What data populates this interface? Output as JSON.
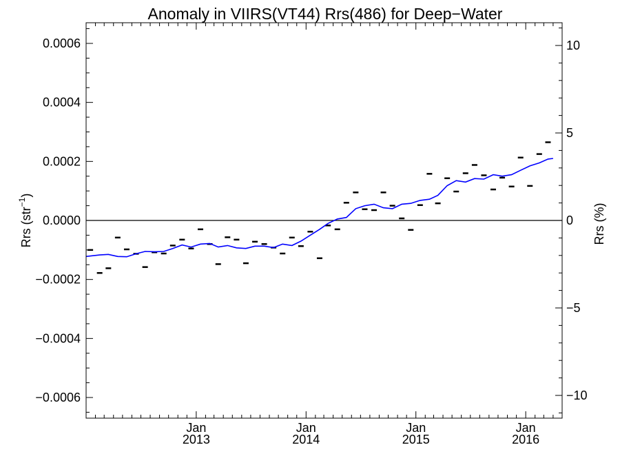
{
  "chart_data": {
    "type": "line",
    "title": "Anomaly in VIIRS(VT44) Rrs(486) for Deep−Water",
    "ylabel_main": "Rrs (str",
    "ylabel_sup": "−1",
    "ylabel_close": ")",
    "y2label": "Rrs (%)",
    "ylim": [
      -0.00067,
      0.00067
    ],
    "y2lim": [
      -11.3,
      11.3
    ],
    "xlim": [
      "2012-01-01",
      "2016-05-01"
    ],
    "grid": false,
    "y_ticks": [
      {
        "value": -0.0006,
        "label": "−0.0006"
      },
      {
        "value": -0.0004,
        "label": "−0.0004"
      },
      {
        "value": -0.0002,
        "label": "−0.0002"
      },
      {
        "value": 0.0,
        "label": "0.0000"
      },
      {
        "value": 0.0002,
        "label": "0.0002"
      },
      {
        "value": 0.0004,
        "label": "0.0004"
      },
      {
        "value": 0.0006,
        "label": "0.0006"
      }
    ],
    "y2_ticks": [
      {
        "value": -10,
        "label": "−10"
      },
      {
        "value": -5,
        "label": "−5"
      },
      {
        "value": 0,
        "label": "0"
      },
      {
        "value": 5,
        "label": "5"
      },
      {
        "value": 10,
        "label": "10"
      }
    ],
    "x_ticks": [
      {
        "date": "2013-01-01",
        "month": "Jan",
        "year": "2013"
      },
      {
        "date": "2014-01-01",
        "month": "Jan",
        "year": "2014"
      },
      {
        "date": "2015-01-01",
        "month": "Jan",
        "year": "2015"
      },
      {
        "date": "2016-01-01",
        "month": "Jan",
        "year": "2016"
      }
    ],
    "reference_line": 0,
    "series": [
      {
        "kind": "markers",
        "marker": "dash",
        "color": "#000000",
        "points": [
          {
            "x": "2012-01-15",
            "y": -0.0001
          },
          {
            "x": "2012-02-15",
            "y": -0.000178
          },
          {
            "x": "2012-03-15",
            "y": -0.000162
          },
          {
            "x": "2012-04-15",
            "y": -5.8e-05
          },
          {
            "x": "2012-05-15",
            "y": -9.8e-05
          },
          {
            "x": "2012-06-15",
            "y": -0.000113
          },
          {
            "x": "2012-07-15",
            "y": -0.000158
          },
          {
            "x": "2012-08-15",
            "y": -0.000108
          },
          {
            "x": "2012-09-15",
            "y": -0.000112
          },
          {
            "x": "2012-10-15",
            "y": -8.5e-05
          },
          {
            "x": "2012-11-15",
            "y": -6.5e-05
          },
          {
            "x": "2012-12-15",
            "y": -9.5e-05
          },
          {
            "x": "2013-01-15",
            "y": -3e-05
          },
          {
            "x": "2013-02-15",
            "y": -8e-05
          },
          {
            "x": "2013-03-15",
            "y": -0.000148
          },
          {
            "x": "2013-04-15",
            "y": -5.7e-05
          },
          {
            "x": "2013-05-15",
            "y": -6.5e-05
          },
          {
            "x": "2013-06-15",
            "y": -0.000145
          },
          {
            "x": "2013-07-15",
            "y": -7.2e-05
          },
          {
            "x": "2013-08-15",
            "y": -8e-05
          },
          {
            "x": "2013-09-15",
            "y": -9.2e-05
          },
          {
            "x": "2013-10-15",
            "y": -0.000112
          },
          {
            "x": "2013-11-15",
            "y": -5.8e-05
          },
          {
            "x": "2013-12-15",
            "y": -8.7e-05
          },
          {
            "x": "2014-01-15",
            "y": -3.8e-05
          },
          {
            "x": "2014-02-15",
            "y": -0.000128
          },
          {
            "x": "2014-03-15",
            "y": -1.7e-05
          },
          {
            "x": "2014-04-15",
            "y": -3e-05
          },
          {
            "x": "2014-05-15",
            "y": 6e-05
          },
          {
            "x": "2014-06-15",
            "y": 9.5e-05
          },
          {
            "x": "2014-07-15",
            "y": 3.8e-05
          },
          {
            "x": "2014-08-15",
            "y": 3.5e-05
          },
          {
            "x": "2014-09-15",
            "y": 9.5e-05
          },
          {
            "x": "2014-10-15",
            "y": 5e-05
          },
          {
            "x": "2014-11-15",
            "y": 7e-06
          },
          {
            "x": "2014-12-15",
            "y": -3.2e-05
          },
          {
            "x": "2015-01-15",
            "y": 5.2e-05
          },
          {
            "x": "2015-02-15",
            "y": 0.000158
          },
          {
            "x": "2015-03-15",
            "y": 5.8e-05
          },
          {
            "x": "2015-04-15",
            "y": 0.000143
          },
          {
            "x": "2015-05-15",
            "y": 9.8e-05
          },
          {
            "x": "2015-06-15",
            "y": 0.00016
          },
          {
            "x": "2015-07-15",
            "y": 0.000188
          },
          {
            "x": "2015-08-15",
            "y": 0.000153
          },
          {
            "x": "2015-09-15",
            "y": 0.000105
          },
          {
            "x": "2015-10-15",
            "y": 0.000145
          },
          {
            "x": "2015-11-15",
            "y": 0.000115
          },
          {
            "x": "2015-12-15",
            "y": 0.000213
          },
          {
            "x": "2016-01-15",
            "y": 0.000117
          },
          {
            "x": "2016-02-15",
            "y": 0.000225
          },
          {
            "x": "2016-03-15",
            "y": 0.000265
          }
        ]
      },
      {
        "kind": "line",
        "color": "#0000ff",
        "points": [
          {
            "x": "2012-01-01",
            "y": -0.000122
          },
          {
            "x": "2012-02-15",
            "y": -0.000117
          },
          {
            "x": "2012-03-15",
            "y": -0.000115
          },
          {
            "x": "2012-04-15",
            "y": -0.000122
          },
          {
            "x": "2012-05-15",
            "y": -0.000123
          },
          {
            "x": "2012-06-15",
            "y": -0.000113
          },
          {
            "x": "2012-07-15",
            "y": -0.000105
          },
          {
            "x": "2012-08-15",
            "y": -0.000106
          },
          {
            "x": "2012-09-15",
            "y": -0.000105
          },
          {
            "x": "2012-10-15",
            "y": -9.5e-05
          },
          {
            "x": "2012-11-15",
            "y": -8.3e-05
          },
          {
            "x": "2012-12-15",
            "y": -9e-05
          },
          {
            "x": "2013-01-15",
            "y": -8e-05
          },
          {
            "x": "2013-02-15",
            "y": -7.8e-05
          },
          {
            "x": "2013-03-15",
            "y": -9e-05
          },
          {
            "x": "2013-04-15",
            "y": -8.5e-05
          },
          {
            "x": "2013-05-15",
            "y": -9.3e-05
          },
          {
            "x": "2013-06-15",
            "y": -9.5e-05
          },
          {
            "x": "2013-07-15",
            "y": -8.7e-05
          },
          {
            "x": "2013-08-15",
            "y": -8.7e-05
          },
          {
            "x": "2013-09-15",
            "y": -9.2e-05
          },
          {
            "x": "2013-10-15",
            "y": -8e-05
          },
          {
            "x": "2013-11-15",
            "y": -8.5e-05
          },
          {
            "x": "2013-12-15",
            "y": -7e-05
          },
          {
            "x": "2014-01-15",
            "y": -5e-05
          },
          {
            "x": "2014-02-15",
            "y": -3e-05
          },
          {
            "x": "2014-03-15",
            "y": -1e-05
          },
          {
            "x": "2014-04-15",
            "y": 5e-06
          },
          {
            "x": "2014-05-15",
            "y": 1e-05
          },
          {
            "x": "2014-06-15",
            "y": 4e-05
          },
          {
            "x": "2014-07-15",
            "y": 5e-05
          },
          {
            "x": "2014-08-15",
            "y": 5.5e-05
          },
          {
            "x": "2014-09-15",
            "y": 4.3e-05
          },
          {
            "x": "2014-10-15",
            "y": 4e-05
          },
          {
            "x": "2014-11-15",
            "y": 5.5e-05
          },
          {
            "x": "2014-12-15",
            "y": 5.8e-05
          },
          {
            "x": "2015-01-15",
            "y": 6.8e-05
          },
          {
            "x": "2015-02-15",
            "y": 7.2e-05
          },
          {
            "x": "2015-03-15",
            "y": 8.5e-05
          },
          {
            "x": "2015-04-15",
            "y": 0.000118
          },
          {
            "x": "2015-05-15",
            "y": 0.000135
          },
          {
            "x": "2015-06-15",
            "y": 0.00013
          },
          {
            "x": "2015-07-15",
            "y": 0.000142
          },
          {
            "x": "2015-08-15",
            "y": 0.00014
          },
          {
            "x": "2015-09-15",
            "y": 0.000155
          },
          {
            "x": "2015-10-15",
            "y": 0.00015
          },
          {
            "x": "2015-11-15",
            "y": 0.000155
          },
          {
            "x": "2015-12-15",
            "y": 0.00017
          },
          {
            "x": "2016-01-15",
            "y": 0.000185
          },
          {
            "x": "2016-02-15",
            "y": 0.000195
          },
          {
            "x": "2016-03-15",
            "y": 0.000208
          },
          {
            "x": "2016-04-01",
            "y": 0.00021
          }
        ]
      }
    ]
  }
}
